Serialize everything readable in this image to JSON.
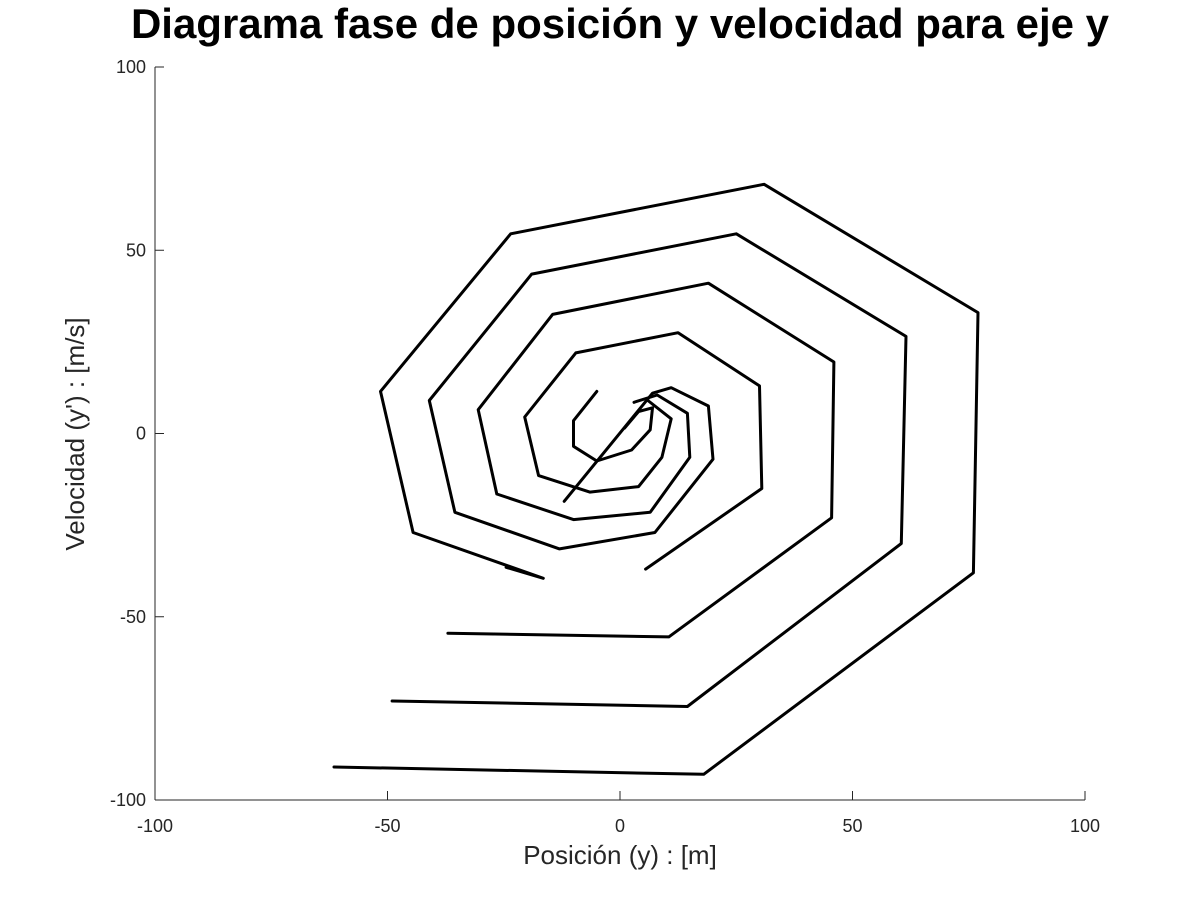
{
  "chart_data": {
    "type": "line",
    "title": "Diagrama fase de posición y velocidad para eje y",
    "xlabel": "Posición (y) : [m]",
    "ylabel": "Velocidad (y') : [m/s]",
    "xlim": [
      -100,
      100
    ],
    "ylim": [
      -100,
      100
    ],
    "xticks": [
      -100,
      -50,
      0,
      50,
      100
    ],
    "yticks": [
      -100,
      -50,
      0,
      50,
      100
    ],
    "xtick_labels": [
      "-100",
      "-50",
      "0",
      "50",
      "100"
    ],
    "ytick_labels": [
      "-100",
      "-50",
      "0",
      "50",
      "100"
    ],
    "grid": false,
    "line_color": "#000000",
    "series": [
      {
        "x": [
          -61.5,
          18.0,
          76.0,
          77.0,
          31.0,
          -23.5,
          -51.5,
          -44.5,
          -16.5,
          -24.5
        ],
        "y": [
          -91.0,
          -93.0,
          -38.0,
          33.0,
          68.0,
          54.5,
          11.5,
          -27.0,
          -39.5,
          -36.5
        ]
      },
      {
        "x": [
          -49.0,
          14.5,
          60.5,
          61.5,
          25.0,
          -19.0,
          -41.0,
          -35.5,
          -13.0,
          7.5,
          20.0,
          19.0,
          11.0,
          7.0,
          -12.0
        ],
        "y": [
          -73.0,
          -74.5,
          -30.0,
          26.5,
          54.5,
          43.5,
          9.0,
          -21.5,
          -31.5,
          -27.0,
          -7.0,
          7.5,
          12.5,
          11.0,
          -18.5
        ]
      },
      {
        "x": [
          -37.0,
          10.5,
          45.5,
          46.0,
          19.0,
          -14.5,
          -30.5,
          -26.5,
          -10.0,
          6.5,
          15.0,
          14.5,
          8.0,
          3.0
        ],
        "y": [
          -54.5,
          -55.5,
          -23.0,
          19.5,
          41.0,
          32.5,
          6.5,
          -16.5,
          -23.5,
          -21.5,
          -6.5,
          5.5,
          10.5,
          8.5
        ]
      },
      {
        "x": [
          5.5,
          30.5,
          30.0,
          12.5,
          -9.5,
          -20.5,
          -17.5,
          -6.5,
          4.0,
          9.0,
          11.0,
          6.0
        ],
        "y": [
          -37.0,
          -15.0,
          13.0,
          27.5,
          22.0,
          4.5,
          -11.5,
          -16.0,
          -14.5,
          -6.5,
          4.0,
          9.0
        ]
      },
      {
        "x": [
          -5.0,
          -10.0,
          -10.0,
          -5.0,
          2.5,
          6.5,
          7.0,
          4.0,
          1.0
        ],
        "y": [
          11.5,
          3.5,
          -3.5,
          -7.5,
          -4.5,
          1.0,
          7.0,
          6.0,
          1.5
        ]
      }
    ]
  }
}
